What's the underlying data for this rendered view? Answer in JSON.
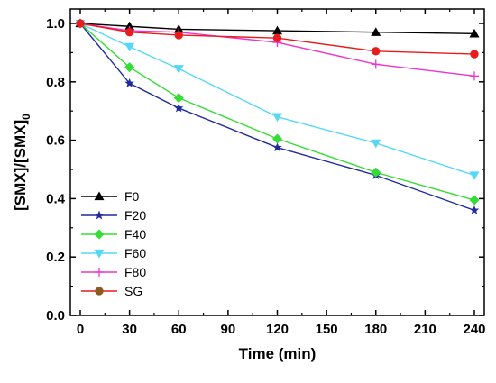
{
  "chart_data": {
    "type": "line",
    "title": "",
    "xlabel": "Time (min)",
    "ylabel_main": "[SMX]/[SMX]",
    "ylabel_sub": "0",
    "xlim": [
      0,
      240
    ],
    "ylim": [
      0.0,
      1.0
    ],
    "xticks": [
      0,
      30,
      60,
      90,
      120,
      150,
      180,
      210,
      240
    ],
    "yticks": [
      0.0,
      0.2,
      0.4,
      0.6,
      0.8,
      1.0
    ],
    "xtick_labels": [
      "0",
      "30",
      "60",
      "90",
      "120",
      "150",
      "180",
      "210",
      "240"
    ],
    "ytick_labels": [
      "0.0",
      "0.2",
      "0.4",
      "0.6",
      "0.8",
      "1.0"
    ],
    "grid": false,
    "legend_position": "bottom-left",
    "series": [
      {
        "name": "F0",
        "color": "#000000",
        "marker": "triangle-up",
        "x": [
          0,
          30,
          60,
          120,
          180,
          240
        ],
        "y": [
          1.0,
          0.99,
          0.98,
          0.975,
          0.97,
          0.965
        ]
      },
      {
        "name": "F20",
        "color": "#1f2a9c",
        "marker": "star",
        "x": [
          0,
          30,
          60,
          120,
          180,
          240
        ],
        "y": [
          1.0,
          0.795,
          0.71,
          0.575,
          0.48,
          0.36
        ]
      },
      {
        "name": "F40",
        "color": "#33dd33",
        "marker": "diamond",
        "x": [
          0,
          30,
          60,
          120,
          180,
          240
        ],
        "y": [
          1.0,
          0.85,
          0.745,
          0.605,
          0.49,
          0.395
        ]
      },
      {
        "name": "F60",
        "color": "#55d8f5",
        "marker": "triangle-down",
        "x": [
          0,
          30,
          60,
          120,
          180,
          240
        ],
        "y": [
          1.0,
          0.92,
          0.845,
          0.68,
          0.59,
          0.48
        ]
      },
      {
        "name": "F80",
        "color": "#ee33cc",
        "marker": "plus",
        "x": [
          0,
          30,
          60,
          120,
          180,
          240
        ],
        "y": [
          1.0,
          0.975,
          0.97,
          0.935,
          0.86,
          0.82
        ]
      },
      {
        "name": "SG",
        "color": "#e81c1c",
        "marker": "circle",
        "x": [
          0,
          30,
          60,
          120,
          180,
          240
        ],
        "y": [
          1.0,
          0.97,
          0.96,
          0.95,
          0.905,
          0.895
        ]
      }
    ],
    "legend_marker_colors": {
      "SG": "#8b5a1f"
    }
  }
}
